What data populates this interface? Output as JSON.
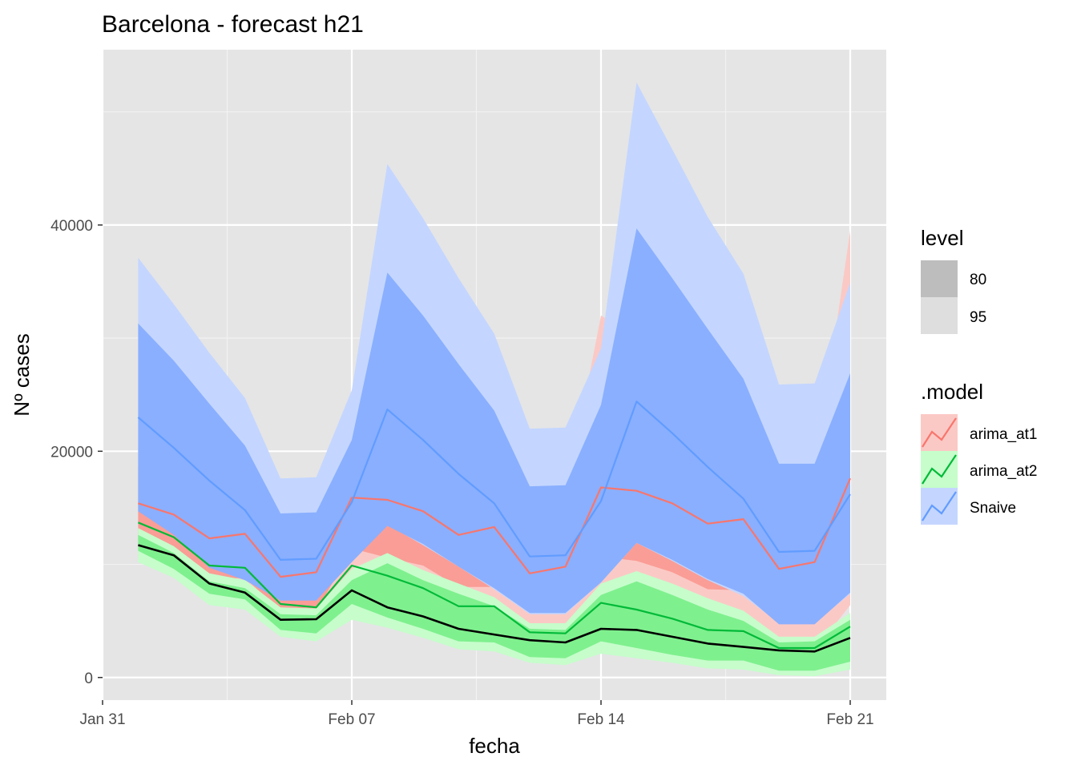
{
  "chart_data": {
    "type": "line",
    "title": "Barcelona - forecast h21",
    "xlabel": "fecha",
    "ylabel": "Nº cases",
    "x_ticks": [
      "Jan 31",
      "Feb 07",
      "Feb 14",
      "Feb 21"
    ],
    "y_ticks": [
      "0",
      "20000",
      "40000"
    ],
    "ylim": [
      -2000,
      55500
    ],
    "grid": true,
    "legend_position": "right",
    "legend": {
      "level_title": "level",
      "levels": [
        "80",
        "95"
      ],
      "model_title": ".model",
      "models": [
        "arima_at1",
        "arima_at2",
        "Snaive"
      ]
    },
    "x": [
      "2021-02-01",
      "2021-02-02",
      "2021-02-03",
      "2021-02-04",
      "2021-02-05",
      "2021-02-06",
      "2021-02-07",
      "2021-02-08",
      "2021-02-09",
      "2021-02-10",
      "2021-02-11",
      "2021-02-12",
      "2021-02-13",
      "2021-02-14",
      "2021-02-15",
      "2021-02-16",
      "2021-02-17",
      "2021-02-18",
      "2021-02-19",
      "2021-02-20",
      "2021-02-21"
    ],
    "series": [
      {
        "name": "arima_at1",
        "color": "#F8766D",
        "fill80": "#FA9D96",
        "fill95": "#FBC9C5",
        "mean": [
          15400,
          14400,
          12300,
          12700,
          8900,
          9300,
          15900,
          15700,
          14700,
          12600,
          13300,
          9200,
          9800,
          16800,
          16500,
          15400,
          13600,
          14000,
          9600,
          10200,
          17600
        ],
        "lo80": [
          12200,
          11200,
          8700,
          8800,
          5900,
          5800,
          11400,
          10600,
          9900,
          8000,
          8000,
          5800,
          5800,
          10700,
          10300,
          9300,
          7800,
          7700,
          4900,
          5100,
          10300
        ],
        "hi80": [
          18600,
          17600,
          15900,
          16600,
          11900,
          12800,
          20400,
          20800,
          19500,
          17200,
          18600,
          12600,
          13800,
          22900,
          22700,
          21500,
          19400,
          20300,
          14300,
          15300,
          24900
        ],
        "lo95": [
          10500,
          9500,
          6800,
          6700,
          4300,
          4000,
          9100,
          7900,
          7400,
          5600,
          5200,
          4000,
          3700,
          7500,
          7000,
          6100,
          4800,
          4300,
          2400,
          2400,
          6400
        ],
        "hi95": [
          20300,
          19300,
          17800,
          18700,
          13500,
          14600,
          22700,
          23500,
          22000,
          19600,
          21400,
          14400,
          15900,
          32000,
          30000,
          26000,
          22500,
          23700,
          16800,
          18000,
          39500
        ]
      },
      {
        "name": "arima_at2",
        "color": "#00BA38",
        "fill80": "#7FF08E",
        "fill95": "#C6FDCB",
        "mean": [
          13700,
          12400,
          9900,
          9700,
          6500,
          6200,
          9900,
          9000,
          7900,
          6300,
          6300,
          4000,
          3900,
          6600,
          6000,
          5200,
          4200,
          4100,
          2600,
          2600,
          4500
        ],
        "lo80": [
          11200,
          9600,
          7400,
          6900,
          4200,
          3900,
          6500,
          5300,
          4300,
          3200,
          3100,
          1800,
          1700,
          3200,
          2600,
          2000,
          1500,
          1500,
          600,
          600,
          1400
        ],
        "hi80": [
          12600,
          11000,
          8500,
          7900,
          5600,
          5500,
          8600,
          10100,
          8600,
          7400,
          6300,
          4300,
          4200,
          7300,
          8500,
          7300,
          6000,
          5000,
          3100,
          3200,
          5100
        ],
        "lo95": [
          10200,
          8800,
          6400,
          6000,
          3600,
          3200,
          5100,
          4400,
          3500,
          2500,
          2300,
          1300,
          1100,
          2100,
          1700,
          1300,
          800,
          700,
          200,
          100,
          700
        ],
        "hi95": [
          13200,
          11600,
          9200,
          8600,
          6200,
          6100,
          9600,
          11000,
          9500,
          8300,
          7100,
          4800,
          4800,
          8300,
          9400,
          8300,
          7000,
          5900,
          3600,
          3600,
          5700
        ]
      },
      {
        "name": "Snaive",
        "color": "#619CFF",
        "fill80": "#8AAFFF",
        "fill95": "#C4D6FF",
        "mean": [
          23000,
          20300,
          17400,
          14800,
          10400,
          10500,
          15500,
          23700,
          21000,
          18000,
          15400,
          10700,
          10800,
          15600,
          24400,
          21600,
          18600,
          15800,
          11100,
          11200,
          16200
        ],
        "lo80": [
          14700,
          12600,
          9700,
          8600,
          6800,
          6800,
          10200,
          13400,
          11800,
          9800,
          7900,
          5700,
          5700,
          8400,
          11900,
          10400,
          8700,
          7400,
          4700,
          4700,
          7500
        ],
        "hi80": [
          31300,
          28000,
          24200,
          20500,
          14500,
          14600,
          21000,
          35800,
          32000,
          27700,
          23600,
          16900,
          17000,
          24100,
          39700,
          35300,
          30800,
          26400,
          18900,
          18900,
          26900
        ],
        "lo95": [
          15700,
          14000,
          11400,
          9800,
          7200,
          6800,
          10600,
          13500,
          11700,
          9800,
          7800,
          5600,
          5600,
          8400,
          11900,
          10300,
          8600,
          7200,
          4800,
          4800,
          7400
        ],
        "hi95": [
          37100,
          33000,
          28700,
          24700,
          17600,
          17700,
          25400,
          45400,
          40600,
          35300,
          30400,
          22000,
          22100,
          29100,
          52600,
          46700,
          40700,
          35700,
          25900,
          26000,
          34900
        ]
      },
      {
        "name": "observed",
        "color": "#000000",
        "mean": [
          11700,
          10800,
          8300,
          7500,
          5100,
          5150,
          7700,
          6200,
          5400,
          4300,
          3800,
          3300,
          3100,
          4300,
          4200,
          3600,
          3000,
          2700,
          2400,
          2300,
          3500
        ]
      }
    ]
  }
}
